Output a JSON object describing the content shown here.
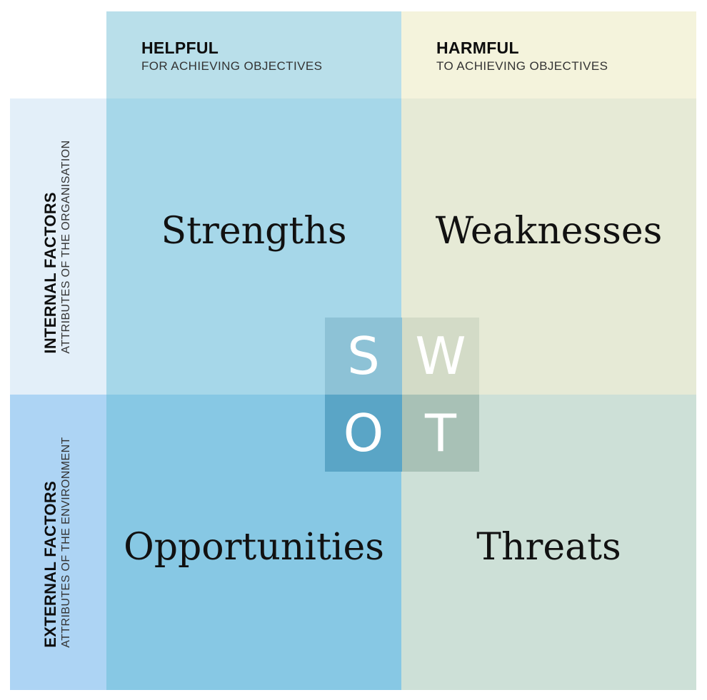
{
  "columns": {
    "helpful": {
      "title": "HELPFUL",
      "subtitle": "FOR ACHIEVING OBJECTIVES"
    },
    "harmful": {
      "title": "HARMFUL",
      "subtitle": "TO ACHIEVING OBJECTIVES"
    }
  },
  "rows": {
    "internal": {
      "title": "INTERNAL FACTORS",
      "subtitle": "ATTRIBUTES OF THE ORGANISATION"
    },
    "external": {
      "title": "EXTERNAL FACTORS",
      "subtitle": "ATTRIBUTES OF THE ENVIRONMENT"
    }
  },
  "quadrants": {
    "strengths": "Strengths",
    "weaknesses": "Weaknesses",
    "opportunities": "Opportunities",
    "threats": "Threats"
  },
  "swot_tiles": {
    "s": "S",
    "w": "W",
    "o": "O",
    "t": "T"
  },
  "colors": {
    "helpful_header": "#b9dfea",
    "harmful_header": "#f4f3dc",
    "internal_row": "#e3eff9",
    "external_row": "#add4f4",
    "strengths": "#a6d7e9",
    "weaknesses": "#e6ead6",
    "opportunities": "#87c8e4",
    "threats": "#cde0d7"
  }
}
